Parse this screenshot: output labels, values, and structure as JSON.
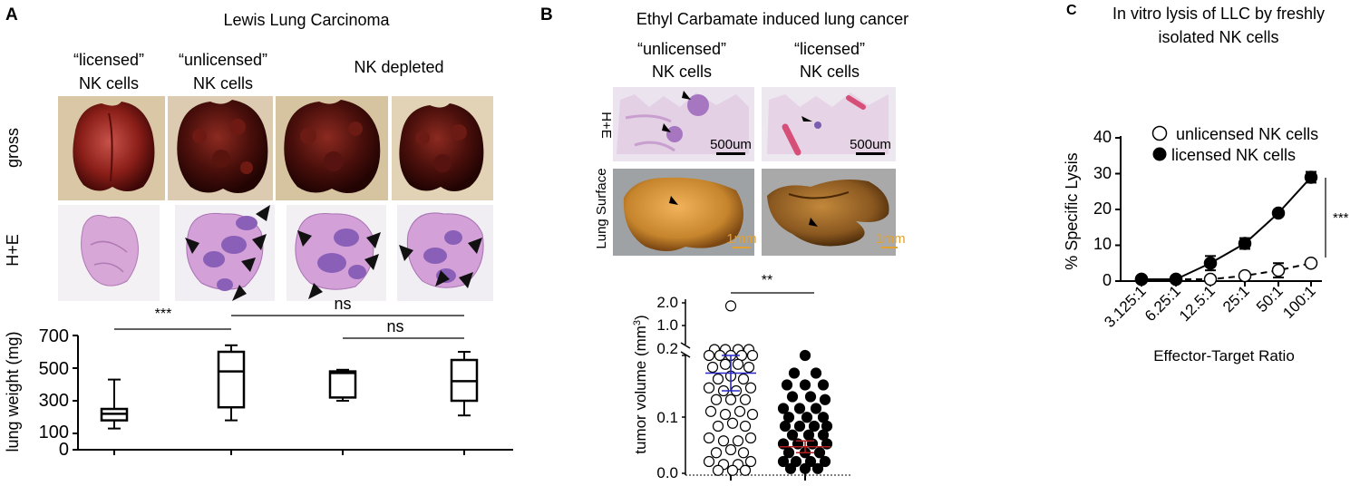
{
  "panel_a": {
    "letter": "A",
    "title": "Lewis Lung Carcinoma",
    "col_labels": [
      {
        "line1": "“licensed”",
        "line2": "NK cells"
      },
      {
        "line1": "“unlicensed”",
        "line2": "NK cells"
      },
      {
        "line1": "NK depleted",
        "line2": ""
      }
    ],
    "row_labels": {
      "gross": "gross",
      "he": "H+E"
    },
    "chart_data": {
      "type": "boxplot",
      "ylabel": "lung weight (mg)",
      "yticks": [
        "700",
        "500",
        "300",
        "100",
        "0"
      ],
      "ylim": [
        0,
        700
      ],
      "groups": [
        {
          "min": 130,
          "q1": 180,
          "median": 220,
          "q3": 250,
          "max": 430
        },
        {
          "min": 180,
          "q1": 260,
          "median": 480,
          "q3": 600,
          "max": 640
        },
        {
          "min": 300,
          "q1": 320,
          "median": 470,
          "q3": 480,
          "max": 490
        },
        {
          "min": 210,
          "q1": 300,
          "median": 420,
          "q3": 550,
          "max": 600
        }
      ],
      "annotations": [
        {
          "text": "***",
          "from": 0,
          "to": 1
        },
        {
          "text": "ns",
          "from": 1,
          "to": 3
        },
        {
          "text": "ns",
          "from": 2,
          "to": 3
        }
      ]
    }
  },
  "panel_b": {
    "letter": "B",
    "title": "Ethyl Carbamate induced lung cancer",
    "col_labels": [
      {
        "line1": "“unlicensed”",
        "line2": "NK cells"
      },
      {
        "line1": "“licensed”",
        "line2": "NK cells"
      }
    ],
    "row_labels": {
      "he": "H+E",
      "surface": "Lung Surface"
    },
    "scalebar_he": "500um",
    "scalebar_surface": "1mm",
    "colors": {
      "scale_orange": "#e3a130",
      "mean_blue": "#2828c8",
      "mean_red": "#b02020"
    },
    "chart_data": {
      "type": "scatter",
      "ylabel_text": "tumor volume (mm",
      "ylabel_sup": "3",
      "ylabel_close": ")",
      "yticks": [
        "2.0",
        "1.0",
        "0.2",
        "0.1",
        "0.0"
      ],
      "significance": "**",
      "series": [
        {
          "fill": "open",
          "mean": 0.17,
          "sem_low": 0.14,
          "sem_high": 0.2,
          "points": [
            [
              0,
              1.9
            ],
            [
              -18,
              0.22
            ],
            [
              -6,
              0.22
            ],
            [
              8,
              0.22
            ],
            [
              20,
              0.22
            ],
            [
              -24,
              0.2
            ],
            [
              -12,
              0.2
            ],
            [
              0,
              0.2
            ],
            [
              12,
              0.2
            ],
            [
              24,
              0.2
            ],
            [
              -20,
              0.18
            ],
            [
              -6,
              0.185
            ],
            [
              8,
              0.185
            ],
            [
              20,
              0.18
            ],
            [
              -14,
              0.16
            ],
            [
              0,
              0.165
            ],
            [
              14,
              0.16
            ],
            [
              -24,
              0.145
            ],
            [
              -8,
              0.14
            ],
            [
              6,
              0.14
            ],
            [
              22,
              0.145
            ],
            [
              -16,
              0.125
            ],
            [
              0,
              0.125
            ],
            [
              16,
              0.125
            ],
            [
              -22,
              0.105
            ],
            [
              -6,
              0.1
            ],
            [
              10,
              0.105
            ],
            [
              24,
              0.1
            ],
            [
              -14,
              0.08
            ],
            [
              2,
              0.085
            ],
            [
              16,
              0.08
            ],
            [
              -24,
              0.06
            ],
            [
              -8,
              0.055
            ],
            [
              8,
              0.055
            ],
            [
              22,
              0.06
            ],
            [
              -16,
              0.035
            ],
            [
              0,
              0.04
            ],
            [
              14,
              0.035
            ],
            [
              -24,
              0.02
            ],
            [
              -8,
              0.015
            ],
            [
              8,
              0.015
            ],
            [
              22,
              0.02
            ],
            [
              -14,
              0.005
            ],
            [
              2,
              0.005
            ],
            [
              16,
              0.005
            ]
          ]
        },
        {
          "fill": "filled",
          "mean": 0.045,
          "sem_low": 0.035,
          "sem_high": 0.055,
          "points": [
            [
              0,
              0.2
            ],
            [
              -12,
              0.17
            ],
            [
              12,
              0.17
            ],
            [
              -20,
              0.15
            ],
            [
              0,
              0.15
            ],
            [
              20,
              0.15
            ],
            [
              -14,
              0.13
            ],
            [
              6,
              0.13
            ],
            [
              22,
              0.125
            ],
            [
              -24,
              0.11
            ],
            [
              -6,
              0.11
            ],
            [
              12,
              0.11
            ],
            [
              -18,
              0.095
            ],
            [
              2,
              0.095
            ],
            [
              20,
              0.095
            ],
            [
              -22,
              0.08
            ],
            [
              -6,
              0.08
            ],
            [
              10,
              0.08
            ],
            [
              24,
              0.08
            ],
            [
              -14,
              0.065
            ],
            [
              4,
              0.065
            ],
            [
              20,
              0.065
            ],
            [
              -24,
              0.05
            ],
            [
              -8,
              0.05
            ],
            [
              8,
              0.05
            ],
            [
              24,
              0.05
            ],
            [
              -18,
              0.035
            ],
            [
              0,
              0.035
            ],
            [
              16,
              0.035
            ],
            [
              -24,
              0.02
            ],
            [
              -10,
              0.02
            ],
            [
              6,
              0.02
            ],
            [
              22,
              0.02
            ],
            [
              -16,
              0.008
            ],
            [
              0,
              0.008
            ],
            [
              14,
              0.008
            ]
          ]
        }
      ]
    }
  },
  "panel_c": {
    "letter": "C",
    "title_line1": "In vitro lysis of LLC by freshly",
    "title_line2": "isolated NK cells",
    "chart_data": {
      "type": "line",
      "ylabel": "% Specific Lysis",
      "xlabel": "Effector-Target Ratio",
      "categories": [
        "3.125:1",
        "6.25:1",
        "12.5:1",
        "25:1",
        "50:1",
        "100:1"
      ],
      "yticks": [
        "40",
        "30",
        "20",
        "10",
        "0"
      ],
      "ylim": [
        0,
        40
      ],
      "significance": "***",
      "series": [
        {
          "name": "unlicensed NK cells",
          "marker": "open",
          "dashed": true,
          "values": [
            0.5,
            0.5,
            0.5,
            1.5,
            3.0,
            5.0
          ],
          "err": [
            0,
            0,
            0,
            0.5,
            2.0,
            0.5
          ]
        },
        {
          "name": "licensed NK cells",
          "marker": "filled",
          "dashed": false,
          "values": [
            0.5,
            0.5,
            5.0,
            10.5,
            19.0,
            29.0
          ],
          "err": [
            0,
            0,
            2.0,
            1.5,
            0.5,
            1.5
          ]
        }
      ]
    }
  }
}
